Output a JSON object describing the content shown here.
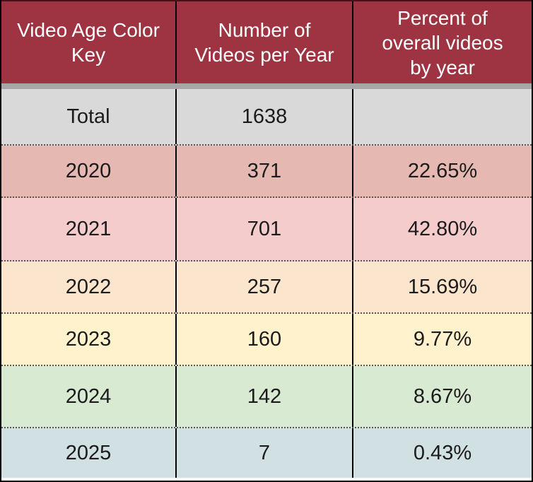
{
  "table": {
    "headers": [
      [
        "Video Age Color",
        "Key"
      ],
      [
        "Number of",
        "Videos per Year"
      ],
      [
        "Percent of",
        "overall videos",
        "by year"
      ]
    ],
    "rows": [
      {
        "label": "Total",
        "count": "1638",
        "percent": "",
        "color": "#d9d9d9"
      },
      {
        "label": "2020",
        "count": "371",
        "percent": "22.65%",
        "color": "#e6b8b2"
      },
      {
        "label": "2021",
        "count": "701",
        "percent": "42.80%",
        "color": "#f4cccc"
      },
      {
        "label": "2022",
        "count": "257",
        "percent": "15.69%",
        "color": "#fce5cd"
      },
      {
        "label": "2023",
        "count": "160",
        "percent": "9.77%",
        "color": "#fff2cc"
      },
      {
        "label": "2024",
        "count": "142",
        "percent": "8.67%",
        "color": "#d9ead3"
      },
      {
        "label": "2025",
        "count": "7",
        "percent": "0.43%",
        "color": "#d0e0e3"
      }
    ]
  },
  "colors": {
    "header_bg": "#9e3441",
    "header_text": "#ffffff",
    "separator": "#a7a7a7"
  }
}
